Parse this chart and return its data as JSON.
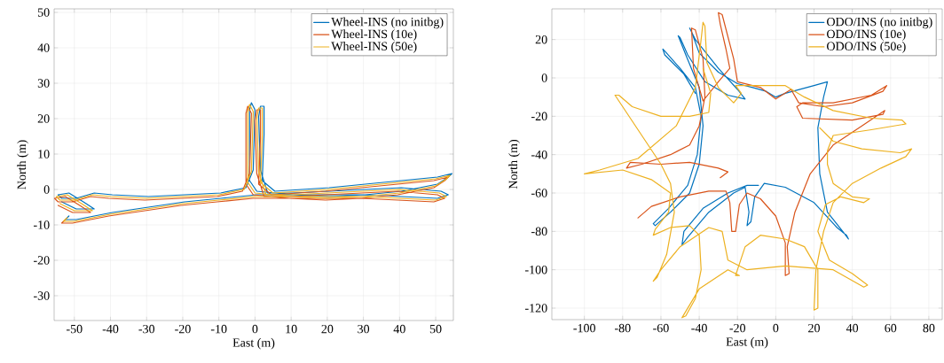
{
  "chart_data": [
    {
      "type": "line",
      "xlabel": "East (m)",
      "ylabel": "North (m)",
      "xlim": [
        -55.6,
        54.9
      ],
      "ylim": [
        -37,
        51
      ],
      "xticks": [
        -50,
        -40,
        -30,
        -20,
        -10,
        0,
        10,
        20,
        30,
        40,
        50
      ],
      "yticks": [
        -30,
        -20,
        -10,
        0,
        10,
        20,
        30,
        40,
        50
      ],
      "grid": true,
      "legend": "top right",
      "series": [
        {
          "name": "Wheel-INS (no initbg)",
          "color": "#0072bd",
          "x": [
            -51.5,
            -52.5,
            -49.5,
            -39.5,
            -29.5,
            -19.5,
            -9.5,
            0.5,
            10.5,
            30.5,
            40.5,
            50.5,
            53.5,
            51.5,
            40.5,
            30.5,
            20.5,
            10.5,
            3.5,
            1.5,
            1,
            1.5,
            2.5,
            2.5,
            2,
            5.5,
            20.5,
            30.5,
            40.5,
            50.5,
            54.5,
            53.5,
            50.5,
            40.5,
            30.5,
            20.5,
            10.5,
            0.5,
            -1.5,
            -1.5,
            -1,
            0,
            -0.5,
            -2.5,
            -9.5,
            -19.5,
            -29.5,
            -39.5,
            -44.5,
            -49.5,
            -53.5,
            -54.5,
            -51.5,
            -47.5,
            -44.5,
            -49.5,
            -53.5
          ],
          "values": [
            -7.5,
            -8.5,
            -8.5,
            -6.5,
            -5,
            -3.5,
            -2.5,
            -1.5,
            -1.5,
            -1.5,
            -2,
            -2.5,
            -1.5,
            -0.5,
            0.5,
            0,
            -0.5,
            -1,
            -1,
            5.5,
            20.5,
            23.5,
            23.5,
            15.5,
            2.5,
            -0.5,
            0.5,
            1.5,
            2.5,
            3.5,
            4.5,
            3.5,
            1.5,
            -0.5,
            -1.5,
            -2,
            -1.5,
            -0.5,
            2.5,
            22.5,
            24.5,
            22.5,
            5.5,
            0.5,
            -1,
            -1.5,
            -2,
            -1.5,
            -1,
            -2.5,
            -2.5,
            -1.5,
            -1,
            -3.5,
            -5.5,
            -5.5,
            -3.5
          ]
        },
        {
          "name": "Wheel-INS (10e)",
          "color": "#d95319",
          "x": [
            -52.5,
            -53.5,
            -50.5,
            -40.5,
            -30.5,
            -20.5,
            -10.5,
            -0.5,
            9.5,
            29.5,
            39.5,
            49.5,
            52.5,
            50.5,
            39.5,
            29.5,
            19.5,
            9.5,
            2.5,
            0.5,
            0,
            0.5,
            1.5,
            1.5,
            1,
            4.5,
            19.5,
            29.5,
            39.5,
            49.5,
            53.5,
            52.5,
            49.5,
            39.5,
            29.5,
            19.5,
            9.5,
            -0.5,
            -2.5,
            -2.5,
            -2,
            -1,
            -1.5,
            -3.5,
            -10.5,
            -20.5,
            -30.5,
            -40.5,
            -45.5,
            -50.5,
            -54.5,
            -55.5,
            -52.5,
            -48.5,
            -45.5,
            -50.5,
            -54.5
          ],
          "values": [
            -8.5,
            -9.5,
            -9.5,
            -7.5,
            -6,
            -4.5,
            -3.5,
            -2.5,
            -2.5,
            -2.5,
            -3,
            -3.5,
            -2.5,
            -1.5,
            -0.5,
            -1,
            -1.5,
            -2,
            -2,
            4.5,
            19.5,
            22.5,
            22.5,
            14.5,
            1.5,
            -1.5,
            -0.5,
            0.5,
            1.5,
            2.5,
            3.5,
            2.5,
            0.5,
            -1.5,
            -2.5,
            -3,
            -2.5,
            -1.5,
            1.5,
            21.5,
            23.5,
            21.5,
            4.5,
            -0.5,
            -2,
            -2.5,
            -3,
            -2.5,
            -2,
            -3.5,
            -3.5,
            -2.5,
            -2,
            -4.5,
            -6.5,
            -6.5,
            -4.5
          ]
        },
        {
          "name": "Wheel-INS (50e)",
          "color": "#edb120",
          "x": [
            -52,
            -53,
            -50,
            -40,
            -30,
            -20,
            -10,
            0,
            10,
            30,
            40,
            50,
            53,
            51,
            40,
            30,
            20,
            10,
            3,
            1,
            0.5,
            1,
            2,
            2,
            1.5,
            5,
            20,
            30,
            40,
            50,
            54,
            53,
            50,
            40,
            30,
            20,
            10,
            0,
            -2,
            -2,
            -1.5,
            -0.5,
            -1,
            -3,
            -10,
            -20,
            -30,
            -40,
            -45,
            -50,
            -54,
            -55,
            -52,
            -48,
            -45,
            -50,
            -54
          ],
          "values": [
            -8,
            -9,
            -9,
            -7,
            -5.5,
            -4,
            -3,
            -2,
            -2,
            -2,
            -2.5,
            -3,
            -2,
            -1,
            0,
            -0.5,
            -1,
            -1.5,
            -1.5,
            5,
            20,
            23,
            23,
            15,
            2,
            -1,
            0,
            1,
            2,
            3,
            4,
            3,
            1,
            -1,
            -2,
            -2.5,
            -2,
            -1,
            2,
            22,
            24,
            22,
            5,
            0,
            -1.5,
            -2,
            -2.5,
            -2,
            -1.5,
            -3,
            -3,
            -2,
            -1.5,
            -4,
            -6,
            -6,
            -4
          ]
        }
      ]
    },
    {
      "type": "line",
      "xlabel": "East (m)",
      "ylabel": "North (m)",
      "xlim": [
        -117,
        87
      ],
      "ylim": [
        -126,
        36
      ],
      "xticks": [
        -100,
        -80,
        -60,
        -40,
        -20,
        0,
        20,
        40,
        60,
        80
      ],
      "yticks": [
        -120,
        -100,
        -80,
        -60,
        -40,
        -20,
        0,
        20
      ],
      "grid": true,
      "legend": "top right",
      "series": [
        {
          "name": "ODO/INS (no initbg)",
          "color": "#0072bd",
          "x": [
            -9,
            -15,
            -25,
            -38,
            -48,
            -49,
            -46,
            -35,
            -22,
            -16,
            -14,
            -15,
            -13,
            -11,
            -6,
            5,
            20,
            32,
            37,
            38,
            35,
            27,
            23,
            22,
            25,
            27,
            20,
            5,
            0,
            -5,
            -12,
            -20,
            -30,
            -40,
            -44,
            -45,
            -42,
            -30,
            -20,
            -16,
            -25,
            -37,
            -46,
            -50,
            -51,
            -47,
            -40,
            -38,
            -40,
            -45,
            -55,
            -63,
            -64,
            -56,
            -46,
            -41,
            -39,
            -42,
            -50,
            -58,
            -59,
            -58,
            -48,
            -42
          ],
          "values": [
            -56,
            -56,
            -60,
            -68,
            -80,
            -87,
            -83,
            -70,
            -60,
            -57,
            -70,
            -77,
            -75,
            -62,
            -55,
            -57,
            -65,
            -78,
            -82,
            -84,
            -80,
            -70,
            -50,
            -26,
            -10,
            -2,
            -4,
            -8,
            -10,
            -7,
            -5,
            -3,
            3,
            13,
            24,
            26,
            20,
            5,
            -6,
            -11,
            -9,
            -2,
            12,
            21,
            22,
            12,
            -5,
            -25,
            -45,
            -60,
            -70,
            -77,
            -76,
            -68,
            -56,
            -40,
            -20,
            -5,
            5,
            14,
            15,
            12,
            2,
            -8
          ]
        },
        {
          "name": "ODO/INS (10e)",
          "color": "#d95319",
          "x": [
            -72,
            -65,
            -50,
            -35,
            -26,
            -24,
            -23,
            -21,
            -19,
            -15,
            -8,
            0,
            5,
            5,
            7,
            6,
            10,
            18,
            30,
            45,
            57,
            56,
            40,
            14,
            11,
            14,
            30,
            50,
            58,
            56,
            40,
            25,
            12,
            8,
            0,
            -8,
            -20,
            -22,
            -28,
            -30,
            -29,
            -26,
            -24,
            -30,
            -38,
            -43,
            -44,
            -42,
            -38,
            -37,
            -40,
            -45,
            -55,
            -70,
            -78,
            -76,
            -60,
            -45,
            -30,
            -25,
            -29
          ],
          "values": [
            -73,
            -67,
            -62,
            -59,
            -59,
            -65,
            -80,
            -80,
            -66,
            -60,
            -63,
            -72,
            -86,
            -103,
            -102,
            -88,
            -70,
            -50,
            -35,
            -25,
            -17,
            -19,
            -22,
            -21,
            -15,
            -13,
            -13,
            -9,
            -4,
            -7,
            -13,
            -15,
            -13,
            -6,
            -11,
            -5,
            -2,
            10,
            33,
            34,
            28,
            15,
            5,
            -2,
            -12,
            5,
            26,
            25,
            10,
            -10,
            -25,
            -35,
            -40,
            -45,
            -47,
            -44,
            -45,
            -44,
            -47,
            -49,
            -52
          ]
        },
        {
          "name": "ODO/INS (50e)",
          "color": "#edb120",
          "x": [
            23,
            30,
            45,
            65,
            71,
            68,
            55,
            40,
            30,
            25,
            21,
            20,
            22,
            22,
            15,
            5,
            -8,
            -16,
            -21,
            -19,
            -25,
            -40,
            -49,
            -47,
            -42,
            -39,
            -40,
            -45,
            -55,
            -64,
            -63,
            -56,
            -55,
            -65,
            -80,
            -100,
            -92,
            -72,
            -52,
            -42,
            -39,
            -38,
            -37,
            -36,
            -30,
            -22,
            -18,
            -21,
            -10,
            5,
            15,
            30,
            50,
            66,
            68,
            50,
            30,
            27,
            27,
            30,
            40,
            49,
            46,
            34,
            26,
            22,
            28,
            40,
            48,
            46,
            30,
            5,
            -15,
            -25,
            -28,
            -35,
            -50,
            -60,
            -64,
            -62,
            -57,
            -53,
            -55,
            -60,
            -70,
            -80,
            -84,
            -82,
            -75,
            -60,
            -45,
            -35,
            -34,
            -38
          ],
          "values": [
            -26,
            -33,
            -37,
            -39,
            -37,
            -41,
            -47,
            -55,
            -65,
            -80,
            -100,
            -121,
            -120,
            -100,
            -88,
            -84,
            -82,
            -88,
            -103,
            -103,
            -100,
            -110,
            -125,
            -124,
            -115,
            -100,
            -82,
            -77,
            -78,
            -82,
            -79,
            -70,
            -60,
            -53,
            -48,
            -50,
            -48,
            -42,
            -25,
            -5,
            20,
            29,
            27,
            8,
            -5,
            -13,
            -8,
            -4,
            -4,
            -4,
            -10,
            -17,
            -21,
            -22,
            -24,
            -27,
            -30,
            -38,
            -45,
            -55,
            -62,
            -63,
            -65,
            -62,
            -66,
            -80,
            -95,
            -102,
            -108,
            -109,
            -100,
            -98,
            -100,
            -95,
            -80,
            -78,
            -88,
            -100,
            -106,
            -104,
            -92,
            -70,
            -55,
            -45,
            -30,
            -15,
            -9,
            -9,
            -15,
            -20,
            -20,
            -18,
            -8,
            5
          ]
        }
      ]
    }
  ]
}
